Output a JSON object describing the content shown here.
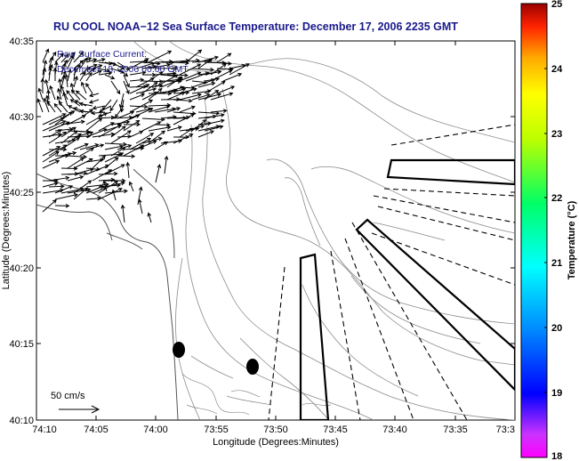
{
  "title": "RU COOL  NOAA−12  Sea Surface Temperature:  December 17, 2006 2235 GMT",
  "overlay": {
    "line1": "Raw Surface Current:",
    "line2": "December 18, 2006 00:00 GMT",
    "scale_label": "50 cm/s"
  },
  "axes": {
    "xlabel": "Longitude (Degrees:Minutes)",
    "ylabel": "Latitude (Degrees:Minutes)",
    "xticks": [
      "74:10",
      "74:05",
      "74:00",
      "73:55",
      "73:50",
      "73:45",
      "73:40",
      "73:35",
      "73:3"
    ],
    "yticks": [
      "40:35",
      "40:30",
      "40:25",
      "40:20",
      "40:15",
      "40:10"
    ]
  },
  "colorbar": {
    "label": "Temperature (°C)",
    "ticks": [
      "25",
      "24",
      "23",
      "22",
      "21",
      "20",
      "19",
      "18"
    ],
    "min": 18,
    "max": 25
  },
  "colors": {
    "title": "#1a1a8c",
    "contour": "#8c8c8c",
    "coast": "#555555"
  },
  "icons": {
    "scale_arrow": "arrow-icon"
  }
}
